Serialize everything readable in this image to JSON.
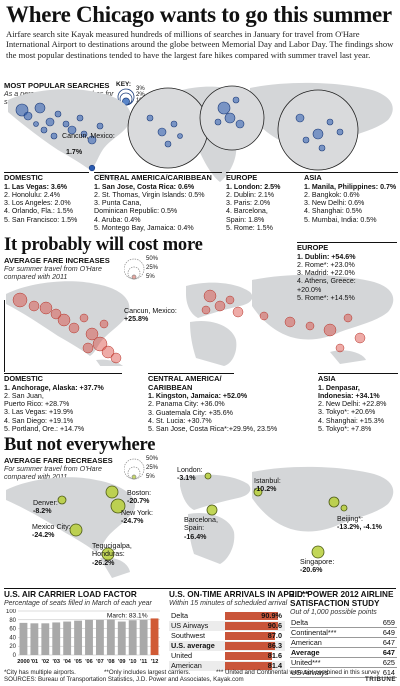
{
  "title": "Where Chicago wants to go this summer",
  "intro": "Airfare search site Kayak measured hundreds of millions of searches in January for travel from O'Hare International Airport to destinations around the globe between Memorial Day and Labor Day. The findings show the most popular destinations tended to have the largest fare hikes compared with summer travel last year.",
  "section1": {
    "heading": "MOST POPULAR SEARCHES",
    "subtitle": "As a percentage of all searches for summer travel from O'Hare",
    "key": {
      "title": "KEY:",
      "levels": [
        "3%",
        "2%",
        "1%"
      ]
    },
    "callout": {
      "label": "Cancun, Mexico:",
      "value": "1.7%"
    },
    "groups": [
      {
        "title": "DOMESTIC",
        "items": [
          "1. Las Vegas: 3.6%",
          "2. Honolulu: 2.4%",
          "3. Los Angeles: 2.0%",
          "4. Orlando, Fla.: 1.5%",
          "5. San Francisco: 1.5%"
        ]
      },
      {
        "title": "CENTRAL AMERICA/CARIBBEAN",
        "items": [
          "1. San Jose, Costa Rica: 0.6%",
          "2. St. Thomas, Virgin Islands: 0.5%",
          "3. Punta Cana,",
          "Dominican Republic: 0.5%",
          "4. Aruba: 0.4%",
          "5. Montego Bay, Jamaica: 0.4%"
        ]
      },
      {
        "title": "EUROPE",
        "items": [
          "1. London: 2.5%",
          "2. Dublin: 2.1%",
          "3. Paris: 2.0%",
          "4. Barcelona,",
          "Spain: 1.8%",
          "5. Rome: 1.5%"
        ]
      },
      {
        "title": "ASIA",
        "items": [
          "1. Manila, Philippines: 0.7%",
          "2. Bangkok: 0.6%",
          "3. New Delhi: 0.6%",
          "4. Shanghai: 0.5%",
          "5. Mumbai, India: 0.5%"
        ]
      }
    ]
  },
  "section2": {
    "heading": "It probably will cost more",
    "subheading": "AVERAGE FARE INCREASES",
    "subtitle": "For summer travel from O'Hare compared with 2011",
    "key": [
      "50%",
      "25%",
      "5%"
    ],
    "cancun": {
      "label": "Cancun, Mexico:",
      "value": "+25.8%"
    },
    "europe": {
      "title": "EUROPE",
      "items": [
        "1. Dublin: +54.6%",
        "2. Rome*: +23.0%",
        "3. Madrid: +22.0%",
        "4. Athens, Greece:",
        "+20.0%",
        "5. Rome*: +14.5%"
      ]
    },
    "domestic": {
      "title": "DOMESTIC",
      "items": [
        "1. Anchorage, Alaska: +37.7%",
        "2. San Juan,",
        "Puerto Rico: +28.7%",
        "3. Las Vegas: +19.9%",
        "4. San Diego: +19.1%",
        "5. Portland, Ore.: +14.7%"
      ]
    },
    "central": {
      "title": "CENTRAL AMERICA/ CARIBBEAN",
      "items": [
        "1. Kingston, Jamaica: +52.0%",
        "2. Panama City: +36.0%",
        "3. Guatemala City: +35.6%",
        "4. St. Lucia: +30.7%",
        "5. San Jose, Costa Rica*:+29.9%, 23.5%"
      ]
    },
    "asia": {
      "title": "ASIA",
      "items": [
        "1. Denpasar,",
        "Indonesia: +34.1%",
        "2. New Delhi: +22.8%",
        "3. Tokyo*: +20.6%",
        "4. Shanghai: +15.3%",
        "5. Tokyo*: +7.8%"
      ]
    }
  },
  "section3": {
    "heading": "But not everywhere",
    "subheading": "AVERAGE FARE DECREASES",
    "subtitle": "For summer travel from O'Hare compared with 2011",
    "key": [
      "50%",
      "25%",
      "5%"
    ],
    "labels": {
      "denver": [
        "Denver:",
        "-8.2%"
      ],
      "boston": [
        "Boston:",
        "-20.7%"
      ],
      "newyork": [
        "New York:",
        "-24.7%"
      ],
      "mexico": [
        "Mexico City:",
        "-24.2%"
      ],
      "tegucigalpa": [
        "Tegucigalpa,",
        "Honduras:",
        "-26.2%"
      ],
      "london": [
        "London:",
        "-3.1%"
      ],
      "istanbul": [
        "Istanbul:",
        "-10.2%"
      ],
      "barcelona": [
        "Barcelona,",
        "Spain:",
        "-16.4%"
      ],
      "beijing": [
        "Beijing*:",
        "-13.2%, -4.1%"
      ],
      "singapore": [
        "Singapore:",
        "-20.6%"
      ]
    }
  },
  "chart_data": [
    {
      "type": "bar",
      "title": "U.S. AIR CARRIER LOAD FACTOR",
      "subtitle": "Percentage of seats filled in March of each year",
      "categories": [
        "2000",
        "'01",
        "'02",
        "'03",
        "'04",
        "'05",
        "'06",
        "'07",
        "'08",
        "'09",
        "'10",
        "'11",
        "'12"
      ],
      "values": [
        73,
        72,
        72,
        74,
        76,
        78,
        80,
        80,
        81,
        76,
        79,
        80,
        83.1
      ],
      "annotation": "March: 83.1%",
      "ylim": [
        0,
        100
      ],
      "ytick_labels": [
        "100",
        "80",
        "60",
        "40",
        "20",
        "0"
      ],
      "grid": true
    },
    {
      "type": "bar",
      "title": "U.S. ON-TIME ARRIVALS IN APRIL**",
      "subtitle": "Within 15 minutes of scheduled arrival",
      "categories": [
        "Delta",
        "US Airways",
        "Southwest",
        "U.S. average",
        "United",
        "American"
      ],
      "values": [
        90.9,
        90.6,
        87.0,
        86.3,
        81.6,
        81.4
      ],
      "value_labels": [
        "90.9%",
        "90.6",
        "87.0",
        "86.3",
        "81.6",
        "81.4"
      ],
      "xlim": [
        0,
        100
      ]
    },
    {
      "type": "table",
      "title": "J.D. POWER 2012 AIRLINE SATISFACTION STUDY",
      "subtitle": "Out of 1,000 possible points",
      "categories": [
        "Delta",
        "Continental***",
        "American",
        "Average",
        "United***",
        "US Airways"
      ],
      "values": [
        659,
        649,
        647,
        647,
        625,
        614
      ]
    }
  ],
  "footer": {
    "note1": "*City has multiple airports.",
    "note2": "**Only includes largest carriers.",
    "note3": "*** United and Continental were not combined in this survey",
    "sources": "SOURCES: Bureau of Transportation Statistics, J.D. Power and Associates, Kayak.com",
    "credit": "TRIBUNE"
  }
}
